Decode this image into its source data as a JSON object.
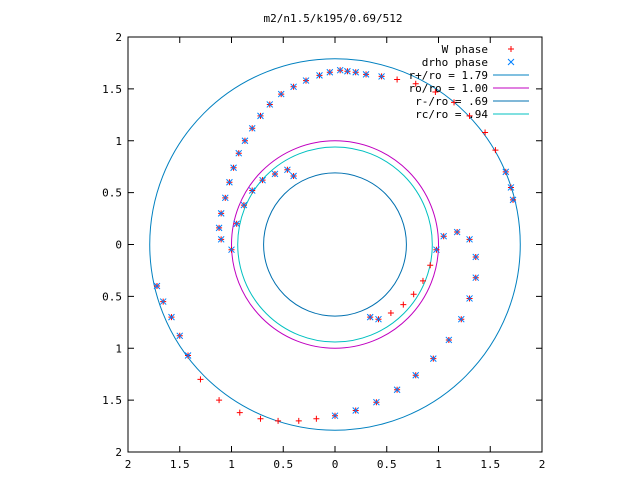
{
  "chart_data": {
    "type": "scatter",
    "title": "m2/n1.5/k195/0.69/512",
    "xlabel": "",
    "ylabel": "",
    "xlim": [
      -2,
      2
    ],
    "ylim": [
      -2,
      2
    ],
    "grid": false,
    "legend_position": "top-right",
    "x_tick_labels": [
      "2",
      "1.5",
      "1",
      "0.5",
      "0",
      "0.5",
      "1",
      "1.5",
      "2"
    ],
    "y_tick_labels": [
      "2",
      "1.5",
      "1",
      "0.5",
      "0",
      "0.5",
      "1",
      "1.5",
      "2"
    ],
    "x_ticks": [
      -2,
      -1.5,
      -1,
      -0.5,
      0,
      0.5,
      1,
      1.5,
      2
    ],
    "y_ticks": [
      2,
      1.5,
      1,
      0.5,
      0,
      -0.5,
      -1,
      -1.5,
      -2
    ],
    "series": [
      {
        "name": "W phase",
        "marker": "+",
        "color": "#ff0000",
        "points": [
          [
            0.05,
            1.68
          ],
          [
            0.12,
            1.67
          ],
          [
            0.2,
            1.66
          ],
          [
            0.3,
            1.64
          ],
          [
            0.45,
            1.62
          ],
          [
            0.6,
            1.59
          ],
          [
            0.78,
            1.55
          ],
          [
            0.97,
            1.47
          ],
          [
            1.15,
            1.37
          ],
          [
            1.3,
            1.24
          ],
          [
            1.45,
            1.08
          ],
          [
            1.55,
            0.91
          ],
          [
            1.65,
            0.7
          ],
          [
            1.7,
            0.55
          ],
          [
            1.72,
            0.43
          ],
          [
            -0.05,
            1.66
          ],
          [
            -0.15,
            1.63
          ],
          [
            -0.28,
            1.58
          ],
          [
            -0.4,
            1.52
          ],
          [
            -0.52,
            1.45
          ],
          [
            -0.63,
            1.35
          ],
          [
            -0.72,
            1.24
          ],
          [
            -0.8,
            1.12
          ],
          [
            -0.87,
            1.0
          ],
          [
            -0.93,
            0.88
          ],
          [
            -0.98,
            0.74
          ],
          [
            -1.02,
            0.6
          ],
          [
            -1.06,
            0.45
          ],
          [
            -1.1,
            0.3
          ],
          [
            -1.12,
            0.16
          ],
          [
            -1.1,
            0.05
          ],
          [
            -1.0,
            -0.05
          ],
          [
            -0.95,
            0.2
          ],
          [
            -0.88,
            0.38
          ],
          [
            -0.8,
            0.52
          ],
          [
            -0.7,
            0.62
          ],
          [
            -0.58,
            0.68
          ],
          [
            -0.46,
            0.72
          ],
          [
            -0.4,
            0.66
          ],
          [
            -1.72,
            -0.4
          ],
          [
            -1.66,
            -0.55
          ],
          [
            -1.58,
            -0.7
          ],
          [
            -1.5,
            -0.88
          ],
          [
            -1.42,
            -1.07
          ],
          [
            -1.3,
            -1.3
          ],
          [
            -1.12,
            -1.5
          ],
          [
            -0.92,
            -1.62
          ],
          [
            -0.72,
            -1.68
          ],
          [
            -0.55,
            -1.7
          ],
          [
            -0.35,
            -1.7
          ],
          [
            -0.18,
            -1.68
          ],
          [
            0.0,
            -1.65
          ],
          [
            0.2,
            -1.6
          ],
          [
            0.4,
            -1.52
          ],
          [
            0.6,
            -1.4
          ],
          [
            0.78,
            -1.26
          ],
          [
            0.95,
            -1.1
          ],
          [
            1.1,
            -0.92
          ],
          [
            1.22,
            -0.72
          ],
          [
            1.3,
            -0.52
          ],
          [
            1.36,
            -0.32
          ],
          [
            1.36,
            -0.12
          ],
          [
            1.3,
            0.05
          ],
          [
            1.18,
            0.12
          ],
          [
            1.05,
            0.08
          ],
          [
            0.98,
            -0.05
          ],
          [
            0.92,
            -0.2
          ],
          [
            0.85,
            -0.35
          ],
          [
            0.76,
            -0.48
          ],
          [
            0.66,
            -0.58
          ],
          [
            0.54,
            -0.66
          ],
          [
            0.42,
            -0.72
          ],
          [
            0.34,
            -0.7
          ]
        ]
      },
      {
        "name": "drho phase",
        "marker": "x",
        "color": "#0080ff",
        "points": [
          [
            -0.05,
            1.66
          ],
          [
            -0.15,
            1.63
          ],
          [
            -0.28,
            1.58
          ],
          [
            -0.4,
            1.52
          ],
          [
            -0.52,
            1.45
          ],
          [
            -0.63,
            1.35
          ],
          [
            -0.72,
            1.24
          ],
          [
            -0.8,
            1.12
          ],
          [
            -0.87,
            1.0
          ],
          [
            -0.93,
            0.88
          ],
          [
            -0.98,
            0.74
          ],
          [
            -1.02,
            0.6
          ],
          [
            -1.06,
            0.45
          ],
          [
            -1.1,
            0.3
          ],
          [
            -1.12,
            0.16
          ],
          [
            -1.1,
            0.05
          ],
          [
            -1.0,
            -0.05
          ],
          [
            -0.95,
            0.2
          ],
          [
            -0.88,
            0.38
          ],
          [
            -0.8,
            0.52
          ],
          [
            -0.7,
            0.62
          ],
          [
            -0.58,
            0.68
          ],
          [
            -0.46,
            0.72
          ],
          [
            -0.4,
            0.66
          ],
          [
            -1.72,
            -0.4
          ],
          [
            -1.66,
            -0.55
          ],
          [
            -1.58,
            -0.7
          ],
          [
            -1.5,
            -0.88
          ],
          [
            -1.42,
            -1.07
          ],
          [
            0.0,
            -1.65
          ],
          [
            0.2,
            -1.6
          ],
          [
            0.4,
            -1.52
          ],
          [
            0.6,
            -1.4
          ],
          [
            0.78,
            -1.26
          ],
          [
            0.95,
            -1.1
          ],
          [
            1.1,
            -0.92
          ],
          [
            1.22,
            -0.72
          ],
          [
            1.3,
            -0.52
          ],
          [
            1.36,
            -0.32
          ],
          [
            1.36,
            -0.12
          ],
          [
            1.3,
            0.05
          ],
          [
            1.18,
            0.12
          ],
          [
            1.05,
            0.08
          ],
          [
            0.98,
            -0.05
          ],
          [
            0.34,
            -0.7
          ],
          [
            0.42,
            -0.72
          ],
          [
            0.05,
            1.68
          ],
          [
            0.12,
            1.67
          ],
          [
            0.2,
            1.66
          ],
          [
            0.3,
            1.64
          ],
          [
            0.45,
            1.62
          ],
          [
            1.65,
            0.7
          ],
          [
            1.7,
            0.55
          ],
          [
            1.72,
            0.43
          ]
        ]
      }
    ],
    "circles": [
      {
        "name": "r+/ro = 1.79",
        "radius": 1.79,
        "color": "#0080c0"
      },
      {
        "name": "ro/ro = 1.00",
        "radius": 1.0,
        "color": "#c000c0"
      },
      {
        "name": "r-/ro = .69",
        "radius": 0.69,
        "color": "#0070b0"
      },
      {
        "name": "rc/ro = .94",
        "radius": 0.94,
        "color": "#00c0c0"
      }
    ]
  }
}
